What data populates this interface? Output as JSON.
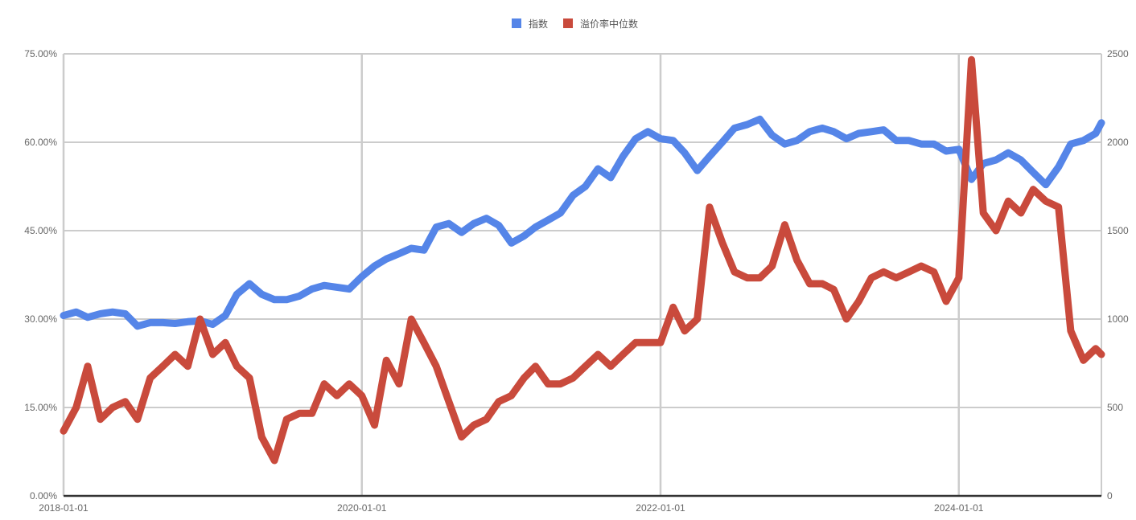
{
  "chart_data": {
    "type": "line",
    "title": "",
    "xlabel": "",
    "ylabel": "",
    "legend_position": "top",
    "grid": true,
    "x_range": [
      "2018-01-01",
      "2024-12-15"
    ],
    "x_ticks": [
      "2018-01-01",
      "2020-01-01",
      "2022-01-01",
      "2024-01-01"
    ],
    "y_left": {
      "range": [
        0,
        75
      ],
      "ticks": [
        0,
        15,
        30,
        45,
        60,
        75
      ],
      "tick_labels": [
        "0.00%",
        "15.00%",
        "30.00%",
        "45.00%",
        "60.00%",
        "75.00%"
      ]
    },
    "y_right": {
      "range": [
        0,
        2500
      ],
      "ticks": [
        0,
        500,
        1000,
        1500,
        2000,
        2500
      ],
      "tick_labels": [
        "0",
        "500",
        "1000",
        "1500",
        "2000",
        "2500"
      ]
    },
    "series": [
      {
        "name": "指数",
        "axis": "right",
        "color": "#5585e8",
        "points": [
          [
            "2018-01-01",
            1020
          ],
          [
            "2018-02-01",
            1040
          ],
          [
            "2018-03-01",
            1010
          ],
          [
            "2018-04-01",
            1030
          ],
          [
            "2018-05-01",
            1040
          ],
          [
            "2018-06-01",
            1030
          ],
          [
            "2018-07-01",
            960
          ],
          [
            "2018-08-01",
            980
          ],
          [
            "2018-09-01",
            980
          ],
          [
            "2018-10-01",
            975
          ],
          [
            "2018-11-01",
            985
          ],
          [
            "2018-12-01",
            990
          ],
          [
            "2019-01-01",
            970
          ],
          [
            "2019-02-01",
            1020
          ],
          [
            "2019-03-01",
            1140
          ],
          [
            "2019-04-01",
            1200
          ],
          [
            "2019-05-01",
            1140
          ],
          [
            "2019-06-01",
            1110
          ],
          [
            "2019-07-01",
            1110
          ],
          [
            "2019-08-01",
            1130
          ],
          [
            "2019-09-01",
            1170
          ],
          [
            "2019-10-01",
            1190
          ],
          [
            "2019-11-01",
            1180
          ],
          [
            "2019-12-01",
            1170
          ],
          [
            "2020-01-01",
            1240
          ],
          [
            "2020-02-01",
            1300
          ],
          [
            "2020-03-01",
            1340
          ],
          [
            "2020-04-01",
            1370
          ],
          [
            "2020-05-01",
            1400
          ],
          [
            "2020-06-01",
            1390
          ],
          [
            "2020-07-01",
            1520
          ],
          [
            "2020-08-01",
            1540
          ],
          [
            "2020-09-01",
            1490
          ],
          [
            "2020-10-01",
            1540
          ],
          [
            "2020-11-01",
            1570
          ],
          [
            "2020-12-01",
            1530
          ],
          [
            "2021-01-01",
            1430
          ],
          [
            "2021-02-01",
            1470
          ],
          [
            "2021-03-01",
            1520
          ],
          [
            "2021-04-01",
            1560
          ],
          [
            "2021-05-01",
            1600
          ],
          [
            "2021-06-01",
            1700
          ],
          [
            "2021-07-01",
            1750
          ],
          [
            "2021-08-01",
            1850
          ],
          [
            "2021-09-01",
            1800
          ],
          [
            "2021-10-01",
            1920
          ],
          [
            "2021-11-01",
            2020
          ],
          [
            "2021-12-01",
            2060
          ],
          [
            "2022-01-01",
            2020
          ],
          [
            "2022-02-01",
            2010
          ],
          [
            "2022-03-01",
            1940
          ],
          [
            "2022-04-01",
            1840
          ],
          [
            "2022-05-01",
            1920
          ],
          [
            "2022-06-01",
            2000
          ],
          [
            "2022-07-01",
            2080
          ],
          [
            "2022-08-01",
            2100
          ],
          [
            "2022-09-01",
            2130
          ],
          [
            "2022-10-01",
            2040
          ],
          [
            "2022-11-01",
            1990
          ],
          [
            "2022-12-01",
            2010
          ],
          [
            "2023-01-01",
            2060
          ],
          [
            "2023-02-01",
            2080
          ],
          [
            "2023-03-01",
            2060
          ],
          [
            "2023-04-01",
            2020
          ],
          [
            "2023-05-01",
            2050
          ],
          [
            "2023-06-01",
            2060
          ],
          [
            "2023-07-01",
            2070
          ],
          [
            "2023-08-01",
            2010
          ],
          [
            "2023-09-01",
            2010
          ],
          [
            "2023-10-01",
            1990
          ],
          [
            "2023-11-01",
            1990
          ],
          [
            "2023-12-01",
            1950
          ],
          [
            "2024-01-01",
            1960
          ],
          [
            "2024-02-01",
            1790
          ],
          [
            "2024-03-01",
            1880
          ],
          [
            "2024-04-01",
            1900
          ],
          [
            "2024-05-01",
            1940
          ],
          [
            "2024-06-01",
            1900
          ],
          [
            "2024-07-01",
            1830
          ],
          [
            "2024-08-01",
            1760
          ],
          [
            "2024-09-01",
            1860
          ],
          [
            "2024-10-01",
            1990
          ],
          [
            "2024-11-01",
            2010
          ],
          [
            "2024-12-01",
            2050
          ],
          [
            "2024-12-15",
            2110
          ]
        ]
      },
      {
        "name": "溢价率中位数",
        "axis": "left",
        "color": "#c94a3c",
        "points": [
          [
            "2018-01-01",
            11
          ],
          [
            "2018-02-01",
            15
          ],
          [
            "2018-03-01",
            22
          ],
          [
            "2018-04-01",
            13
          ],
          [
            "2018-05-01",
            15
          ],
          [
            "2018-06-01",
            16
          ],
          [
            "2018-07-01",
            13
          ],
          [
            "2018-08-01",
            20
          ],
          [
            "2018-09-01",
            22
          ],
          [
            "2018-10-01",
            24
          ],
          [
            "2018-11-01",
            22
          ],
          [
            "2018-12-01",
            30
          ],
          [
            "2019-01-01",
            24
          ],
          [
            "2019-02-01",
            26
          ],
          [
            "2019-03-01",
            22
          ],
          [
            "2019-04-01",
            20
          ],
          [
            "2019-05-01",
            10
          ],
          [
            "2019-06-01",
            6
          ],
          [
            "2019-07-01",
            13
          ],
          [
            "2019-08-01",
            14
          ],
          [
            "2019-09-01",
            14
          ],
          [
            "2019-10-01",
            19
          ],
          [
            "2019-11-01",
            17
          ],
          [
            "2019-12-01",
            19
          ],
          [
            "2020-01-01",
            17
          ],
          [
            "2020-02-01",
            12
          ],
          [
            "2020-03-01",
            23
          ],
          [
            "2020-04-01",
            19
          ],
          [
            "2020-05-01",
            30
          ],
          [
            "2020-06-01",
            26
          ],
          [
            "2020-07-01",
            22
          ],
          [
            "2020-08-01",
            16
          ],
          [
            "2020-09-01",
            10
          ],
          [
            "2020-10-01",
            12
          ],
          [
            "2020-11-01",
            13
          ],
          [
            "2020-12-01",
            16
          ],
          [
            "2021-01-01",
            17
          ],
          [
            "2021-02-01",
            20
          ],
          [
            "2021-03-01",
            22
          ],
          [
            "2021-04-01",
            19
          ],
          [
            "2021-05-01",
            19
          ],
          [
            "2021-06-01",
            20
          ],
          [
            "2021-07-01",
            22
          ],
          [
            "2021-08-01",
            24
          ],
          [
            "2021-09-01",
            22
          ],
          [
            "2021-10-01",
            24
          ],
          [
            "2021-11-01",
            26
          ],
          [
            "2021-12-01",
            26
          ],
          [
            "2022-01-01",
            26
          ],
          [
            "2022-02-01",
            32
          ],
          [
            "2022-03-01",
            28
          ],
          [
            "2022-04-01",
            30
          ],
          [
            "2022-05-01",
            49
          ],
          [
            "2022-06-01",
            43
          ],
          [
            "2022-07-01",
            38
          ],
          [
            "2022-08-01",
            37
          ],
          [
            "2022-09-01",
            37
          ],
          [
            "2022-10-01",
            39
          ],
          [
            "2022-11-01",
            46
          ],
          [
            "2022-12-01",
            40
          ],
          [
            "2023-01-01",
            36
          ],
          [
            "2023-02-01",
            36
          ],
          [
            "2023-03-01",
            35
          ],
          [
            "2023-04-01",
            30
          ],
          [
            "2023-05-01",
            33
          ],
          [
            "2023-06-01",
            37
          ],
          [
            "2023-07-01",
            38
          ],
          [
            "2023-08-01",
            37
          ],
          [
            "2023-09-01",
            38
          ],
          [
            "2023-10-01",
            39
          ],
          [
            "2023-11-01",
            38
          ],
          [
            "2023-12-01",
            33
          ],
          [
            "2024-01-01",
            37
          ],
          [
            "2024-02-01",
            74
          ],
          [
            "2024-03-01",
            48
          ],
          [
            "2024-04-01",
            45
          ],
          [
            "2024-05-01",
            50
          ],
          [
            "2024-06-01",
            48
          ],
          [
            "2024-07-01",
            52
          ],
          [
            "2024-08-01",
            50
          ],
          [
            "2024-09-01",
            49
          ],
          [
            "2024-10-01",
            28
          ],
          [
            "2024-11-01",
            23
          ],
          [
            "2024-12-01",
            25
          ],
          [
            "2024-12-15",
            24
          ]
        ]
      }
    ]
  }
}
